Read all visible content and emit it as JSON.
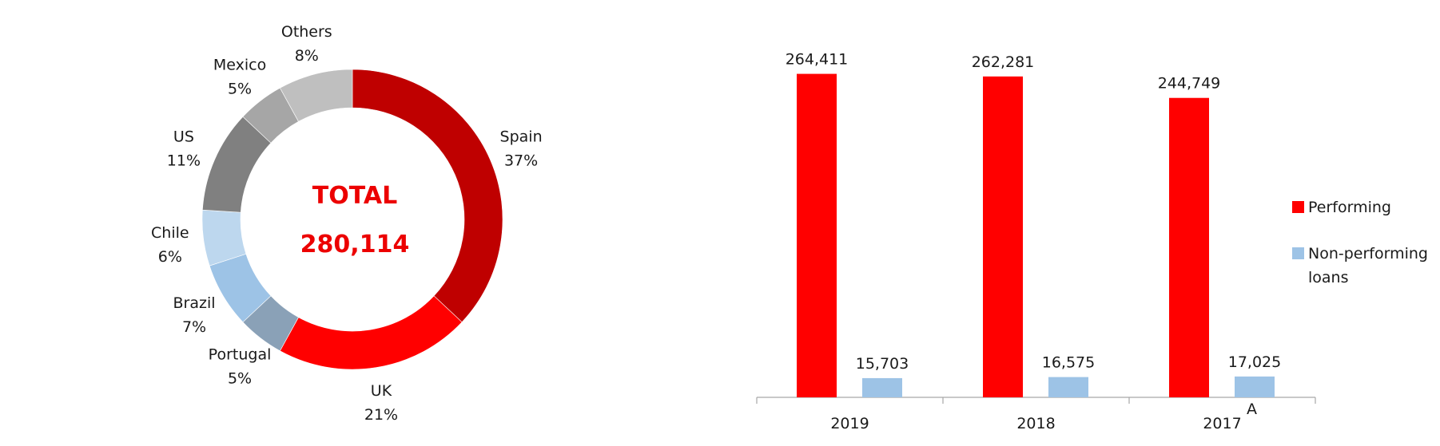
{
  "colors": {
    "text": "#1a1a1a",
    "total": "#ec0000",
    "performing": "#ff0000",
    "non_performing": "#9dc3e6",
    "axis": "#a6a6a6"
  },
  "chart_data": [
    {
      "type": "pie",
      "style": "donut",
      "center_title": "TOTAL",
      "center_value": "280,114",
      "slices": [
        {
          "name": "Spain",
          "value": 37,
          "label": "37%",
          "color": "#bf0000"
        },
        {
          "name": "UK",
          "value": 21,
          "label": "21%",
          "color": "#ff0000"
        },
        {
          "name": "Portugal",
          "value": 5,
          "label": "5%",
          "color": "#8aa1b7"
        },
        {
          "name": "Brazil",
          "value": 7,
          "label": "7%",
          "color": "#9dc3e6"
        },
        {
          "name": "Chile",
          "value": 6,
          "label": "6%",
          "color": "#bdd7ee"
        },
        {
          "name": "US",
          "value": 11,
          "label": "11%",
          "color": "#808080"
        },
        {
          "name": "Mexico",
          "value": 5,
          "label": "5%",
          "color": "#a6a6a6"
        },
        {
          "name": "Others",
          "value": 8,
          "label": "8%",
          "color": "#bfbfbf"
        }
      ]
    },
    {
      "type": "bar",
      "categories": [
        "2019",
        "2018",
        "2017"
      ],
      "category_note": "A",
      "series": [
        {
          "name": "Performing",
          "values": [
            264411,
            262281,
            244749
          ],
          "labels": [
            "264,411",
            "262,281",
            "244,749"
          ],
          "color": "#ff0000"
        },
        {
          "name": "Non-performing loans",
          "values": [
            15703,
            16575,
            17025
          ],
          "labels": [
            "15,703",
            "16,575",
            "17,025"
          ],
          "color": "#9dc3e6"
        }
      ],
      "ylim": [
        0,
        270000
      ],
      "legend_position": "right",
      "grid": false
    }
  ]
}
